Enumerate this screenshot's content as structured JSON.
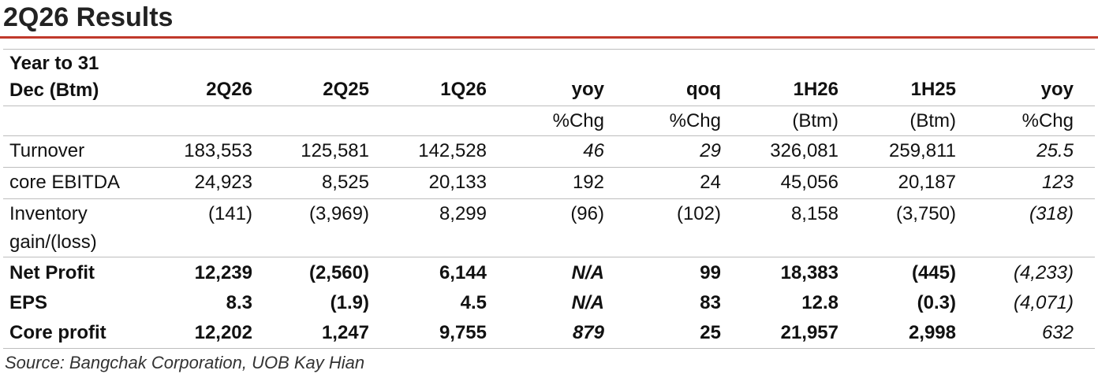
{
  "header": {
    "title": "2Q26 Results"
  },
  "table": {
    "corner": "Year to 31 Dec (Btm)",
    "columns": [
      "2Q26",
      "2Q25",
      "1Q26",
      "yoy",
      "qoq",
      "1H26",
      "1H25",
      "yoy"
    ],
    "units": [
      "",
      "",
      "",
      "%Chg",
      "%Chg",
      "(Btm)",
      "(Btm)",
      "%Chg"
    ],
    "rows": [
      {
        "label": "Turnover",
        "cells": [
          "183,553",
          "125,581",
          "142,528",
          "46",
          "29",
          "326,081",
          "259,811",
          "25.5"
        ]
      },
      {
        "label": "core EBITDA",
        "cells": [
          "24,923",
          "8,525",
          "20,133",
          "192",
          "24",
          "45,056",
          "20,187",
          "123"
        ]
      },
      {
        "label": "Inventory gain/(loss)",
        "cells": [
          "(141)",
          "(3,969)",
          "8,299",
          "(96)",
          "(102)",
          "8,158",
          "(3,750)",
          "(318)"
        ]
      },
      {
        "label": "Net Profit",
        "cells": [
          "12,239",
          "(2,560)",
          "6,144",
          "N/A",
          "99",
          "18,383",
          "(445)",
          "(4,233)"
        ]
      },
      {
        "label": "EPS",
        "cells": [
          "8.3",
          "(1.9)",
          "4.5",
          "N/A",
          "83",
          "12.8",
          "(0.3)",
          "(4,071)"
        ]
      },
      {
        "label": "Core profit",
        "cells": [
          "12,202",
          "1,247",
          "9,755",
          "879",
          "25",
          "21,957",
          "2,998",
          "632"
        ]
      }
    ]
  },
  "footer": {
    "source": "Source: Bangchak Corporation, UOB Kay Hian"
  }
}
